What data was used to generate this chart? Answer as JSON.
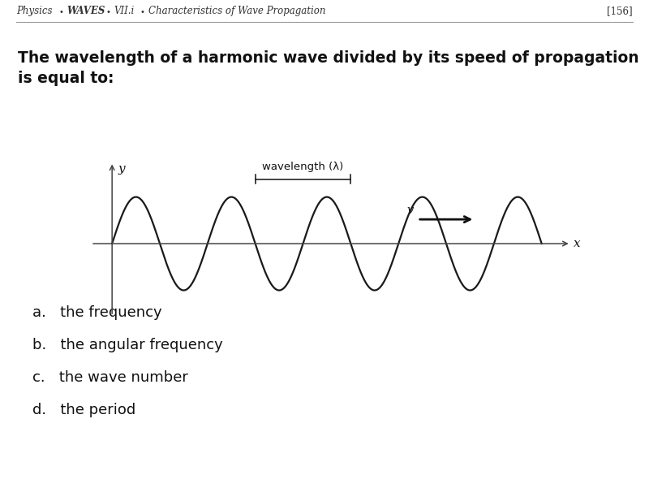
{
  "background_color": "#ffffff",
  "page_number": "[156]",
  "question_line1": "The wavelength of a harmonic wave divided by its speed of propagation",
  "question_line2": "is equal to:",
  "choices": [
    "a.   the frequency",
    "b.   the angular frequency",
    "c.   the wave number",
    "d.   the period"
  ],
  "wave_color": "#1a1a1a",
  "axis_color": "#444444",
  "wavelength_label": "wavelength (λ)",
  "velocity_label": "v",
  "x_label": "x",
  "y_label": "y",
  "header_fontsize": 8.5,
  "question_fontsize": 13.5,
  "choice_fontsize": 13,
  "wave_linewidth": 1.6,
  "wave_period": 1.8
}
